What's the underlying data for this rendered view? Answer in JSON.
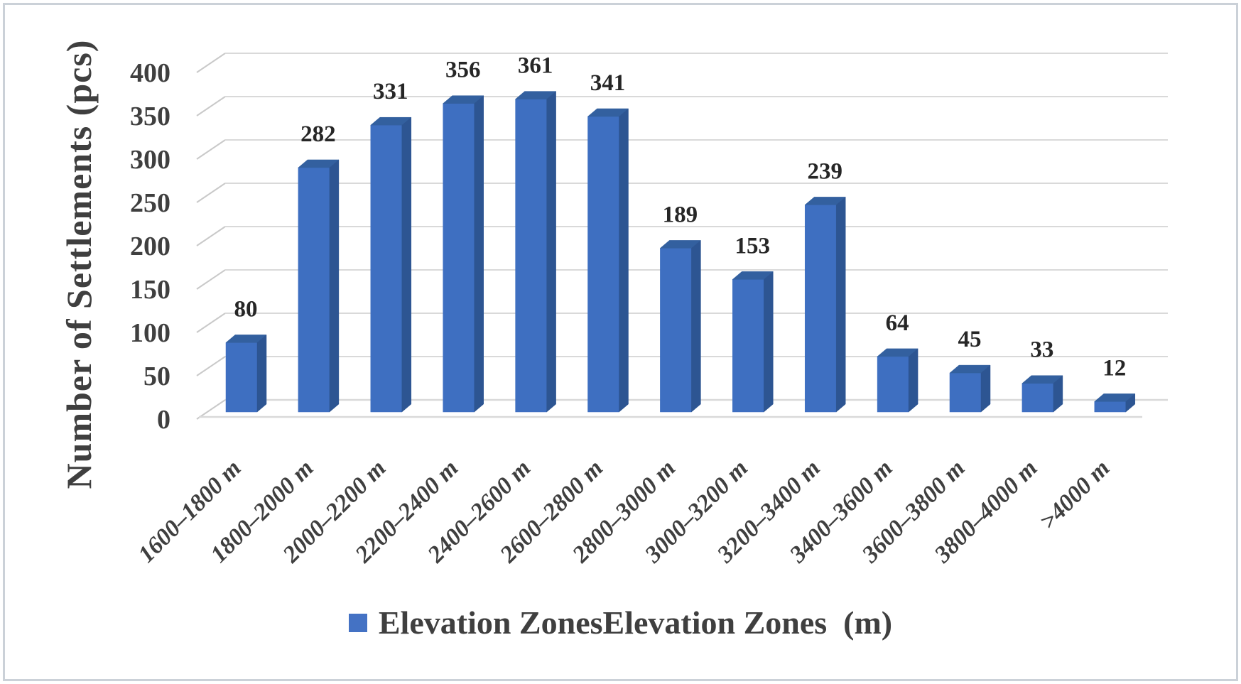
{
  "figure": {
    "background": "#FFFFFF",
    "border_color": "#CBD1D8"
  },
  "chart_data": {
    "type": "bar",
    "style": "3d-column",
    "title": "",
    "ylabel": "Number of Settlements (pcs)",
    "xlabel": "",
    "categories": [
      "1600–1800 m",
      "1800–2000 m",
      "2000–2200 m",
      "2200–2400 m",
      "2400–2600 m",
      "2600–2800 m",
      "2800–3000 m",
      "3000–3200 m",
      "3200–3400 m",
      "3400–3600 m",
      "3600–3800 m",
      "3800–4000 m",
      ">4000 m"
    ],
    "values": [
      80,
      282,
      331,
      356,
      361,
      341,
      189,
      153,
      239,
      64,
      45,
      33,
      12
    ],
    "yticks": [
      0,
      50,
      100,
      150,
      200,
      250,
      300,
      350,
      400
    ],
    "ylim": [
      0,
      400
    ],
    "grid": true,
    "legend": {
      "label": "Elevation ZonesElevation Zones  (m)",
      "position": "bottom",
      "marker_color": "#4472C4"
    },
    "colors": {
      "bar_front": "#3E6FC1",
      "bar_top": "#33609F",
      "bar_side": "#2D5592",
      "gridline": "#D9D9D9",
      "axis_connector": "#C9C9C9",
      "tick_text": "#3F3F3F",
      "data_label_text": "#262626",
      "category_text": "#3F3F3F"
    }
  }
}
